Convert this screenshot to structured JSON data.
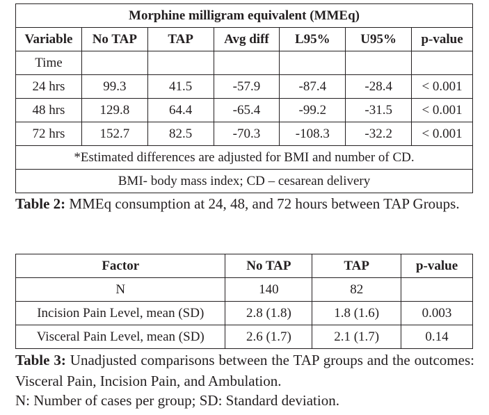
{
  "table2": {
    "title": "Morphine milligram equivalent (MMEq)",
    "headers": [
      "Variable",
      "No TAP",
      "TAP",
      "Avg diff",
      "L95%",
      "U95%",
      "p-value"
    ],
    "group_label": "Time",
    "rows": [
      [
        "24 hrs",
        "99.3",
        "41.5",
        "-57.9",
        "-87.4",
        "-28.4",
        "< 0.001"
      ],
      [
        "48 hrs",
        "129.8",
        "64.4",
        "-65.4",
        "-99.2",
        "-31.5",
        "< 0.001"
      ],
      [
        "72 hrs",
        "152.7",
        "82.5",
        "-70.3",
        "-108.3",
        "-32.2",
        "< 0.001"
      ]
    ],
    "footnote_1": "*Estimated differences are adjusted for BMI and number of CD.",
    "footnote_2": "BMI- body mass index; CD – cesarean delivery",
    "caption_label": "Table 2:",
    "caption_text": " MMEq consumption at 24, 48, and 72 hours between TAP Groups."
  },
  "table3": {
    "headers": [
      "Factor",
      "No TAP",
      "TAP",
      "p-value"
    ],
    "rows": [
      [
        "N",
        "140",
        "82",
        ""
      ],
      [
        "Incision Pain Level, mean (SD)",
        "2.8 (1.8)",
        "1.8 (1.6)",
        "0.003"
      ],
      [
        "Visceral Pain Level, mean (SD)",
        "2.6 (1.7)",
        "2.1 (1.7)",
        "0.14"
      ]
    ],
    "caption_label": "Table 3:",
    "caption_text": " Unadjusted comparisons between the TAP groups and the outcomes: Visceral Pain, Incision Pain, and Ambulation.",
    "note": "N: Number of cases per group; SD: Standard deviation."
  }
}
